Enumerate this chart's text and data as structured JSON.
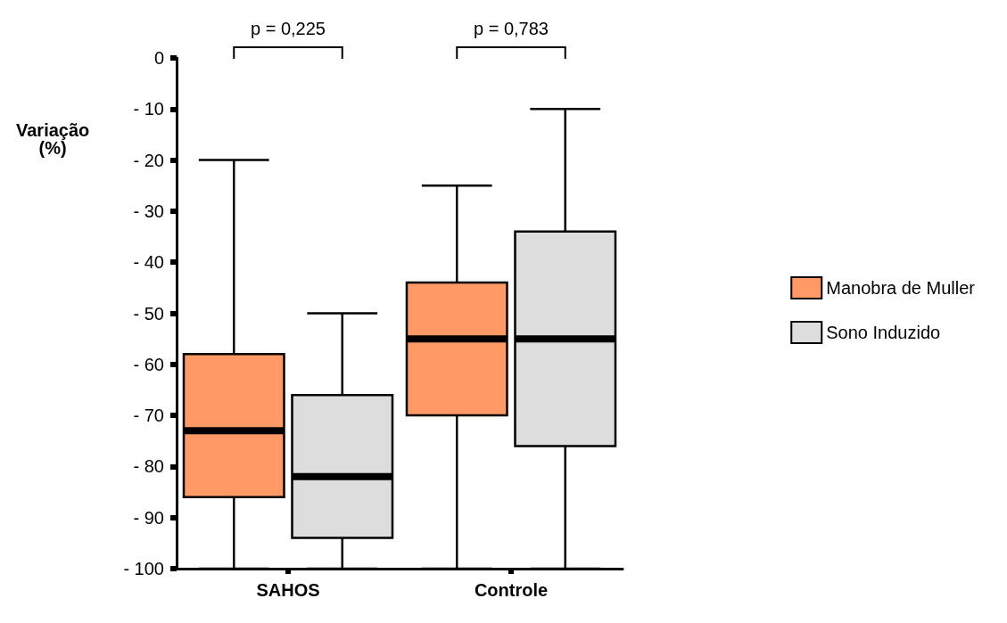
{
  "chart_data": {
    "type": "box",
    "ylabel": "Variação\n(%)",
    "categories": [
      "SAHOS",
      "Controle"
    ],
    "series": [
      {
        "name": "Manobra de Muller",
        "color": "#ff9966",
        "boxes": [
          {
            "low": -100,
            "q1": -86,
            "median": -73,
            "q3": -58,
            "high": -20
          },
          {
            "low": -100,
            "q1": -70,
            "median": -55,
            "q3": -44,
            "high": -25
          }
        ]
      },
      {
        "name": "Sono Induzido",
        "color": "#dddddd",
        "boxes": [
          {
            "low": -100,
            "q1": -94,
            "median": -82,
            "q3": -66,
            "high": -50
          },
          {
            "low": -100,
            "q1": -76,
            "median": -55,
            "q3": -34,
            "high": -10
          }
        ]
      }
    ],
    "ylim": [
      -100,
      0
    ],
    "yticks": [
      {
        "value": -100,
        "label": "- 100"
      },
      {
        "value": -90,
        "label": "- 90"
      },
      {
        "value": -80,
        "label": "- 80"
      },
      {
        "value": -70,
        "label": "- 70"
      },
      {
        "value": -60,
        "label": "- 60"
      },
      {
        "value": -50,
        "label": "- 50"
      },
      {
        "value": -40,
        "label": "- 40"
      },
      {
        "value": -30,
        "label": "- 30"
      },
      {
        "value": -20,
        "label": "- 20"
      },
      {
        "value": -10,
        "label": "- 10"
      },
      0
    ],
    "annotations": [
      "p = 0,225",
      "p = 0,783"
    ],
    "legend": "right",
    "grid": false
  }
}
